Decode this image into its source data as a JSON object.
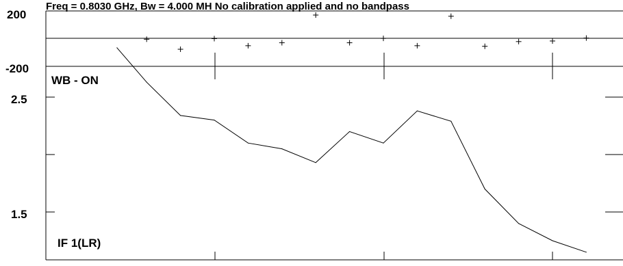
{
  "header": {
    "text": "Freq = 0.8030 GHz, Bw = 4.000 MH  No calibration applied and no bandpass"
  },
  "chart_data": [
    {
      "panel": "phase",
      "type": "scatter",
      "marker": "plus",
      "ytick_labels": [
        "200",
        "-200"
      ],
      "ylim": [
        -200,
        200
      ],
      "points": [
        {
          "x": 3,
          "y": -5
        },
        {
          "x": 4,
          "y": -90
        },
        {
          "x": 5,
          "y": 0
        },
        {
          "x": 6,
          "y": -60
        },
        {
          "x": 7,
          "y": -35
        },
        {
          "x": 8,
          "y": 200
        },
        {
          "x": 9,
          "y": -35
        },
        {
          "x": 10,
          "y": 2
        },
        {
          "x": 11,
          "y": -60
        },
        {
          "x": 12,
          "y": 190
        },
        {
          "x": 13,
          "y": -65
        },
        {
          "x": 14,
          "y": -25
        },
        {
          "x": 15,
          "y": -20
        },
        {
          "x": 16,
          "y": 5
        }
      ]
    },
    {
      "panel": "amplitude",
      "type": "line",
      "annotation_top": "WB - ON",
      "annotation_bottom": "IF 1(LR)",
      "ytick_labels": [
        "2.5",
        "1.5"
      ],
      "ylim": [
        1.1,
        2.96
      ],
      "x": [
        2,
        3,
        4,
        5,
        6,
        7,
        8,
        9,
        10,
        11,
        12,
        13,
        14,
        15,
        16
      ],
      "y": [
        2.93,
        2.63,
        2.34,
        2.3,
        2.1,
        2.05,
        1.93,
        2.2,
        2.1,
        2.38,
        2.29,
        1.7,
        1.4,
        1.25,
        1.15
      ]
    }
  ]
}
